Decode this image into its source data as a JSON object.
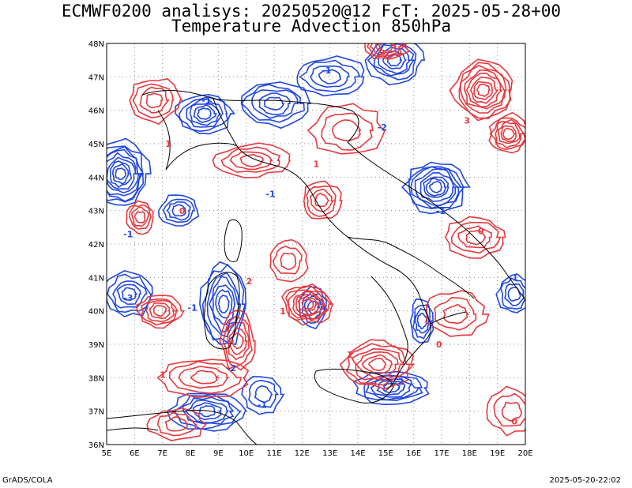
{
  "header": {
    "line1": "ECMWF0200 analisys: 20250520@12 FcT: 2025-05-28+00",
    "line2": "Temperature Advection 850hPa"
  },
  "footer": {
    "left": "GrADS/COLA",
    "right": "2025-05-20-22:02"
  },
  "map": {
    "lon_labels": [
      "5E",
      "6E",
      "7E",
      "8E",
      "9E",
      "10E",
      "11E",
      "12E",
      "13E",
      "14E",
      "15E",
      "16E",
      "17E",
      "18E",
      "19E",
      "20E"
    ],
    "lat_labels": [
      "48N",
      "47N",
      "46N",
      "45N",
      "44N",
      "43N",
      "42N",
      "41N",
      "40N",
      "39N",
      "38N",
      "37N",
      "36N"
    ],
    "colors": {
      "positive": "#e8373c",
      "negative": "#2047e0",
      "coast": "#000000",
      "grid": "#8a8a8a"
    },
    "contour_labels": [
      {
        "text": "-1",
        "lon": 8.4,
        "lat": 46.2,
        "sign": "neg"
      },
      {
        "text": "-1",
        "lon": 10.7,
        "lat": 43.4,
        "sign": "neg"
      },
      {
        "text": "-1",
        "lon": 5.6,
        "lat": 42.2,
        "sign": "neg"
      },
      {
        "text": "-3",
        "lon": 5.6,
        "lat": 40.3,
        "sign": "neg"
      },
      {
        "text": "-1",
        "lon": 7.9,
        "lat": 40.0,
        "sign": "neg"
      },
      {
        "text": "-2",
        "lon": 9.3,
        "lat": 38.2,
        "sign": "neg"
      },
      {
        "text": "-1",
        "lon": 10.4,
        "lat": 37.1,
        "sign": "neg"
      },
      {
        "text": "-1",
        "lon": 12.7,
        "lat": 47.1,
        "sign": "neg"
      },
      {
        "text": "-2",
        "lon": 14.7,
        "lat": 45.4,
        "sign": "neg"
      },
      {
        "text": "-1",
        "lon": 16.8,
        "lat": 42.9,
        "sign": "neg"
      },
      {
        "text": "-2",
        "lon": 15.3,
        "lat": 37.8,
        "sign": "neg"
      },
      {
        "text": "-1",
        "lon": 19.4,
        "lat": 40.9,
        "sign": "neg"
      },
      {
        "text": "1",
        "lon": 7.1,
        "lat": 44.9,
        "sign": "pos"
      },
      {
        "text": "0",
        "lon": 7.6,
        "lat": 42.9,
        "sign": "pos"
      },
      {
        "text": "2",
        "lon": 10.0,
        "lat": 40.8,
        "sign": "pos"
      },
      {
        "text": "1",
        "lon": 12.4,
        "lat": 44.3,
        "sign": "pos"
      },
      {
        "text": "3",
        "lon": 17.8,
        "lat": 45.6,
        "sign": "pos"
      },
      {
        "text": "0",
        "lon": 18.3,
        "lat": 42.3,
        "sign": "pos"
      },
      {
        "text": "1",
        "lon": 13.6,
        "lat": 38.6,
        "sign": "pos"
      },
      {
        "text": "0",
        "lon": 16.8,
        "lat": 38.9,
        "sign": "pos"
      },
      {
        "text": "1",
        "lon": 6.9,
        "lat": 38.0,
        "sign": "pos"
      },
      {
        "text": "0",
        "lon": 19.5,
        "lat": 36.6,
        "sign": "pos"
      },
      {
        "text": "1",
        "lon": 11.2,
        "lat": 39.9,
        "sign": "pos"
      }
    ]
  }
}
